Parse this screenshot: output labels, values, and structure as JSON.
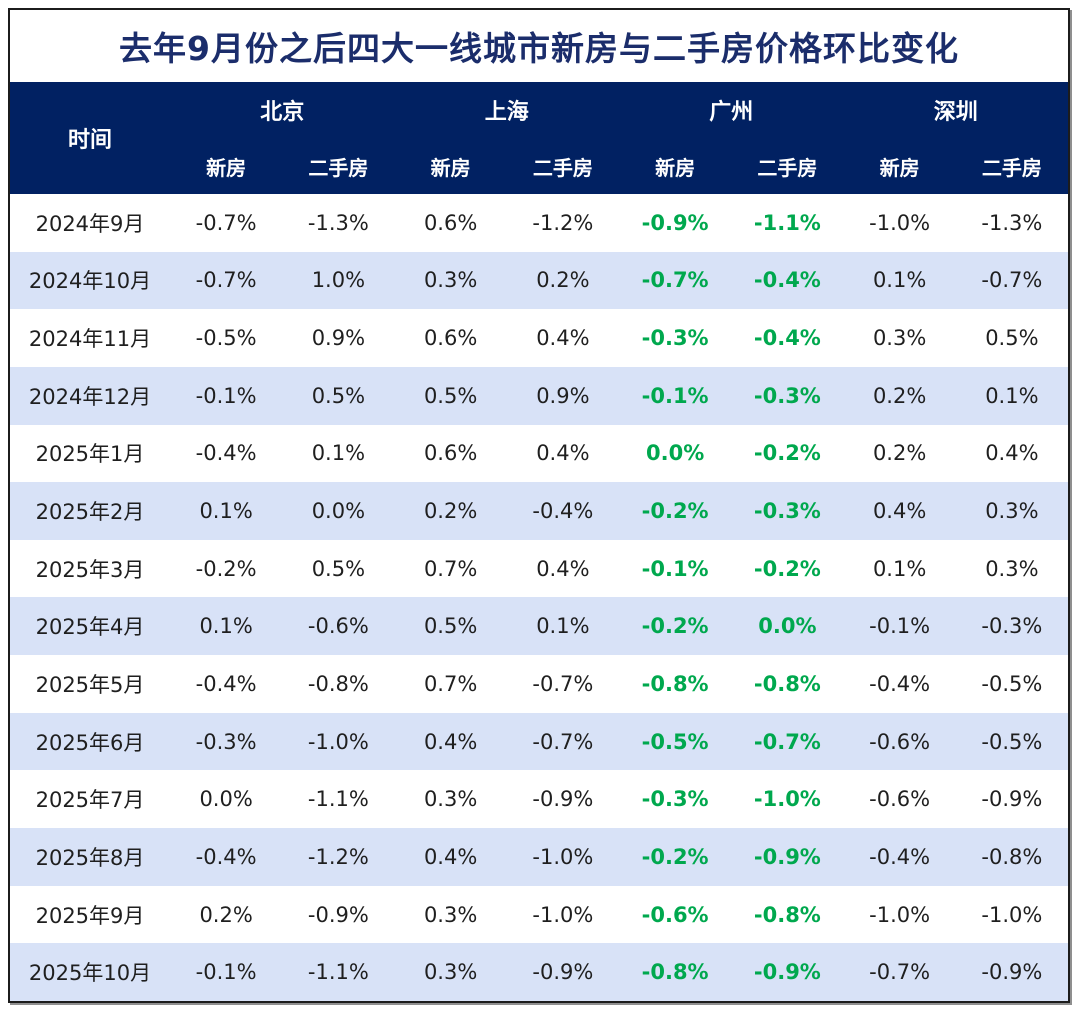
{
  "colors": {
    "header_bg": "#012162",
    "title_text": "#1b2d6b",
    "row_alt": "#d8e2f7",
    "highlight_green": "#00a84e",
    "value_text": "#1f1f1f",
    "border_color": "#1c1c1c"
  },
  "chart_data": {
    "type": "table",
    "title": "去年9月份之后四大一线城市新房与二手房价格环比变化",
    "row_header_label": "时间",
    "column_groups": [
      "北京",
      "上海",
      "广州",
      "深圳"
    ],
    "sub_columns": [
      "新房",
      "二手房"
    ],
    "highlighted_group": "广州",
    "rows": [
      [
        "2024年9月",
        "-0.7%",
        "-1.3%",
        "0.6%",
        "-1.2%",
        "-0.9%",
        "-1.1%",
        "-1.0%",
        "-1.3%"
      ],
      [
        "2024年10月",
        "-0.7%",
        "1.0%",
        "0.3%",
        "0.2%",
        "-0.7%",
        "-0.4%",
        "0.1%",
        "-0.7%"
      ],
      [
        "2024年11月",
        "-0.5%",
        "0.9%",
        "0.6%",
        "0.4%",
        "-0.3%",
        "-0.4%",
        "0.3%",
        "0.5%"
      ],
      [
        "2024年12月",
        "-0.1%",
        "0.5%",
        "0.5%",
        "0.9%",
        "-0.1%",
        "-0.3%",
        "0.2%",
        "0.1%"
      ],
      [
        "2025年1月",
        "-0.4%",
        "0.1%",
        "0.6%",
        "0.4%",
        "0.0%",
        "-0.2%",
        "0.2%",
        "0.4%"
      ],
      [
        "2025年2月",
        "0.1%",
        "0.0%",
        "0.2%",
        "-0.4%",
        "-0.2%",
        "-0.3%",
        "0.4%",
        "0.3%"
      ],
      [
        "2025年3月",
        "-0.2%",
        "0.5%",
        "0.7%",
        "0.4%",
        "-0.1%",
        "-0.2%",
        "0.1%",
        "0.3%"
      ],
      [
        "2025年4月",
        "0.1%",
        "-0.6%",
        "0.5%",
        "0.1%",
        "-0.2%",
        "0.0%",
        "-0.1%",
        "-0.3%"
      ],
      [
        "2025年5月",
        "-0.4%",
        "-0.8%",
        "0.7%",
        "-0.7%",
        "-0.8%",
        "-0.8%",
        "-0.4%",
        "-0.5%"
      ],
      [
        "2025年6月",
        "-0.3%",
        "-1.0%",
        "0.4%",
        "-0.7%",
        "-0.5%",
        "-0.7%",
        "-0.6%",
        "-0.5%"
      ],
      [
        "2025年7月",
        "0.0%",
        "-1.1%",
        "0.3%",
        "-0.9%",
        "-0.3%",
        "-1.0%",
        "-0.6%",
        "-0.9%"
      ],
      [
        "2025年8月",
        "-0.4%",
        "-1.2%",
        "0.4%",
        "-1.0%",
        "-0.2%",
        "-0.9%",
        "-0.4%",
        "-0.8%"
      ],
      [
        "2025年9月",
        "0.2%",
        "-0.9%",
        "0.3%",
        "-1.0%",
        "-0.6%",
        "-0.8%",
        "-1.0%",
        "-1.0%"
      ],
      [
        "2025年10月",
        "-0.1%",
        "-1.1%",
        "0.3%",
        "-0.9%",
        "-0.8%",
        "-0.9%",
        "-0.7%",
        "-0.9%"
      ]
    ]
  }
}
